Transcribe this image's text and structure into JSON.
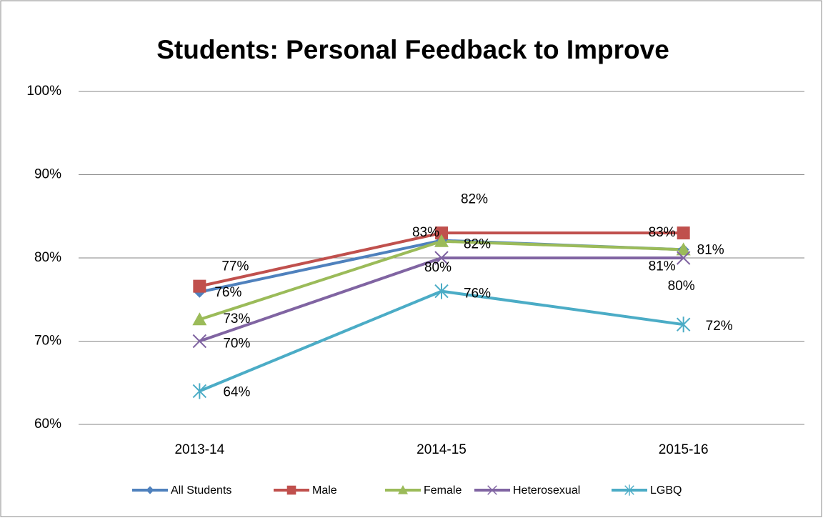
{
  "chart_data": {
    "type": "line",
    "title": "Students: Personal Feedback to Improve",
    "categories": [
      "2013-14",
      "2014-15",
      "2015-16"
    ],
    "series": [
      {
        "name": "All Students",
        "color": "#4f81bd",
        "values": [
          75.9,
          82.1,
          81
        ],
        "value_labels": [
          "76%",
          "82%",
          "81%"
        ]
      },
      {
        "name": "Male",
        "color": "#c0504d",
        "values": [
          76.6,
          83,
          83
        ],
        "value_labels": [
          "77%",
          "83%",
          "83%"
        ]
      },
      {
        "name": "Female",
        "color": "#9bbb59",
        "values": [
          72.6,
          82,
          81
        ],
        "value_labels": [
          "73%",
          "82%",
          "81%"
        ]
      },
      {
        "name": "Heterosexual",
        "color": "#8064a2",
        "values": [
          70,
          80,
          80
        ],
        "value_labels": [
          "70%",
          "80%",
          "80%"
        ]
      },
      {
        "name": "LGBQ",
        "color": "#4bacc6",
        "values": [
          64,
          76,
          72
        ],
        "value_labels": [
          "64%",
          "76%",
          "72%"
        ]
      }
    ],
    "ylim": [
      60,
      100
    ],
    "yticks": [
      {
        "value": 60,
        "label": "60%"
      },
      {
        "value": 70,
        "label": "70%"
      },
      {
        "value": 80,
        "label": "80%"
      },
      {
        "value": 90,
        "label": "90%"
      },
      {
        "value": 100,
        "label": "100%"
      }
    ],
    "grid": true,
    "legend": "bottom"
  }
}
